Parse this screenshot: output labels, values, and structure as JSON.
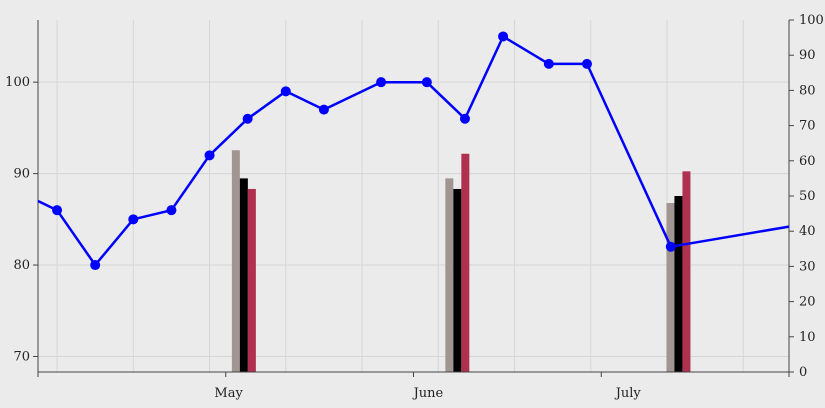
{
  "chart_data": {
    "type": "line",
    "title": "",
    "xlabel": "",
    "ylabel": "",
    "x_tick_labels": [
      "May",
      "June",
      "July"
    ],
    "grid": true,
    "legend": "none",
    "y_left": {
      "range": [
        68.3,
        106.8
      ],
      "ticks": [
        70,
        80,
        90,
        100
      ]
    },
    "y_right": {
      "range": [
        0,
        100
      ],
      "ticks": [
        0,
        10,
        20,
        30,
        40,
        50,
        60,
        70,
        80,
        90,
        100
      ]
    },
    "line_series": {
      "axis": "left",
      "color": "#0000ff",
      "points": [
        {
          "x": 0.5,
          "y": 86
        },
        {
          "x": 1.5,
          "y": 80
        },
        {
          "x": 2.5,
          "y": 85
        },
        {
          "x": 3.5,
          "y": 86
        },
        {
          "x": 4.5,
          "y": 92
        },
        {
          "x": 5.5,
          "y": 96
        },
        {
          "x": 6.5,
          "y": 99
        },
        {
          "x": 7.5,
          "y": 97
        },
        {
          "x": 9.0,
          "y": 100
        },
        {
          "x": 10.2,
          "y": 100
        },
        {
          "x": 11.2,
          "y": 96
        },
        {
          "x": 12.2,
          "y": 105
        },
        {
          "x": 13.4,
          "y": 102
        },
        {
          "x": 14.4,
          "y": 102
        },
        {
          "x": 16.6,
          "y": 82
        }
      ],
      "extends_past_left_to": 87,
      "extends_past_right_to": 84.2
    },
    "bar_groups": {
      "axis": "right",
      "categories": [
        "May",
        "June",
        "July"
      ],
      "positions": [
        5.4,
        11.0,
        16.8
      ],
      "series": [
        {
          "color": "#a09591",
          "values": [
            63,
            55,
            48
          ]
        },
        {
          "color": "#000000",
          "values": [
            55,
            52,
            50
          ]
        },
        {
          "color": "#b0304f",
          "values": [
            52,
            62,
            57
          ]
        }
      ]
    }
  }
}
